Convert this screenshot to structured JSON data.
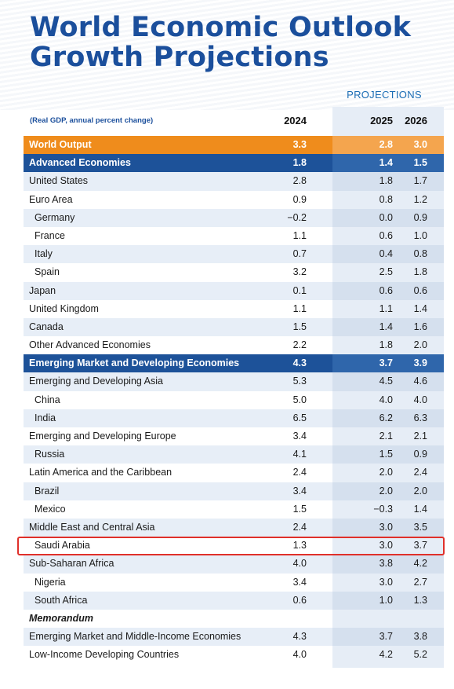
{
  "title_line1": "World Economic Outlook",
  "title_line2": "Growth Projections",
  "projections_label": "PROJECTIONS",
  "note": "(Real GDP, annual percent change)",
  "years": [
    "2024",
    "2025",
    "2026"
  ],
  "rows": [
    {
      "label": "World Output",
      "v": [
        "3.3",
        "2.8",
        "3.0"
      ]
    },
    {
      "label": "Advanced Economies",
      "v": [
        "1.8",
        "1.4",
        "1.5"
      ]
    },
    {
      "label": "United States",
      "v": [
        "2.8",
        "1.8",
        "1.7"
      ]
    },
    {
      "label": "Euro Area",
      "v": [
        "0.9",
        "0.8",
        "1.2"
      ]
    },
    {
      "label": "Germany",
      "v": [
        "−0.2",
        "0.0",
        "0.9"
      ]
    },
    {
      "label": "France",
      "v": [
        "1.1",
        "0.6",
        "1.0"
      ]
    },
    {
      "label": "Italy",
      "v": [
        "0.7",
        "0.4",
        "0.8"
      ]
    },
    {
      "label": "Spain",
      "v": [
        "3.2",
        "2.5",
        "1.8"
      ]
    },
    {
      "label": "Japan",
      "v": [
        "0.1",
        "0.6",
        "0.6"
      ]
    },
    {
      "label": "United Kingdom",
      "v": [
        "1.1",
        "1.1",
        "1.4"
      ]
    },
    {
      "label": "Canada",
      "v": [
        "1.5",
        "1.4",
        "1.6"
      ]
    },
    {
      "label": "Other Advanced Economies",
      "v": [
        "2.2",
        "1.8",
        "2.0"
      ]
    },
    {
      "label": "Emerging Market and Developing Economies",
      "v": [
        "4.3",
        "3.7",
        "3.9"
      ]
    },
    {
      "label": "Emerging and Developing Asia",
      "v": [
        "5.3",
        "4.5",
        "4.6"
      ]
    },
    {
      "label": "China",
      "v": [
        "5.0",
        "4.0",
        "4.0"
      ]
    },
    {
      "label": "India",
      "v": [
        "6.5",
        "6.2",
        "6.3"
      ]
    },
    {
      "label": "Emerging and Developing Europe",
      "v": [
        "3.4",
        "2.1",
        "2.1"
      ]
    },
    {
      "label": "Russia",
      "v": [
        "4.1",
        "1.5",
        "0.9"
      ]
    },
    {
      "label": "Latin America and the Caribbean",
      "v": [
        "2.4",
        "2.0",
        "2.4"
      ]
    },
    {
      "label": "Brazil",
      "v": [
        "3.4",
        "2.0",
        "2.0"
      ]
    },
    {
      "label": "Mexico",
      "v": [
        "1.5",
        "−0.3",
        "1.4"
      ]
    },
    {
      "label": "Middle East and Central Asia",
      "v": [
        "2.4",
        "3.0",
        "3.5"
      ]
    },
    {
      "label": "Saudi Arabia",
      "v": [
        "1.3",
        "3.0",
        "3.7"
      ]
    },
    {
      "label": "Sub-Saharan Africa",
      "v": [
        "4.0",
        "3.8",
        "4.2"
      ]
    },
    {
      "label": "Nigeria",
      "v": [
        "3.4",
        "3.0",
        "2.7"
      ]
    },
    {
      "label": "South Africa",
      "v": [
        "0.6",
        "1.0",
        "1.3"
      ]
    },
    {
      "label": "Memorandum",
      "v": [
        "",
        "",
        ""
      ]
    },
    {
      "label": "Emerging Market and Middle-Income Economies",
      "v": [
        "4.3",
        "3.7",
        "3.8"
      ]
    },
    {
      "label": "Low-Income Developing Countries",
      "v": [
        "4.0",
        "4.2",
        "5.2"
      ]
    }
  ],
  "colors": {
    "title": "#1b4f9c",
    "world_output": "#ef8c1c",
    "group_header": "#1d5299",
    "highlight": "#e0302a"
  }
}
